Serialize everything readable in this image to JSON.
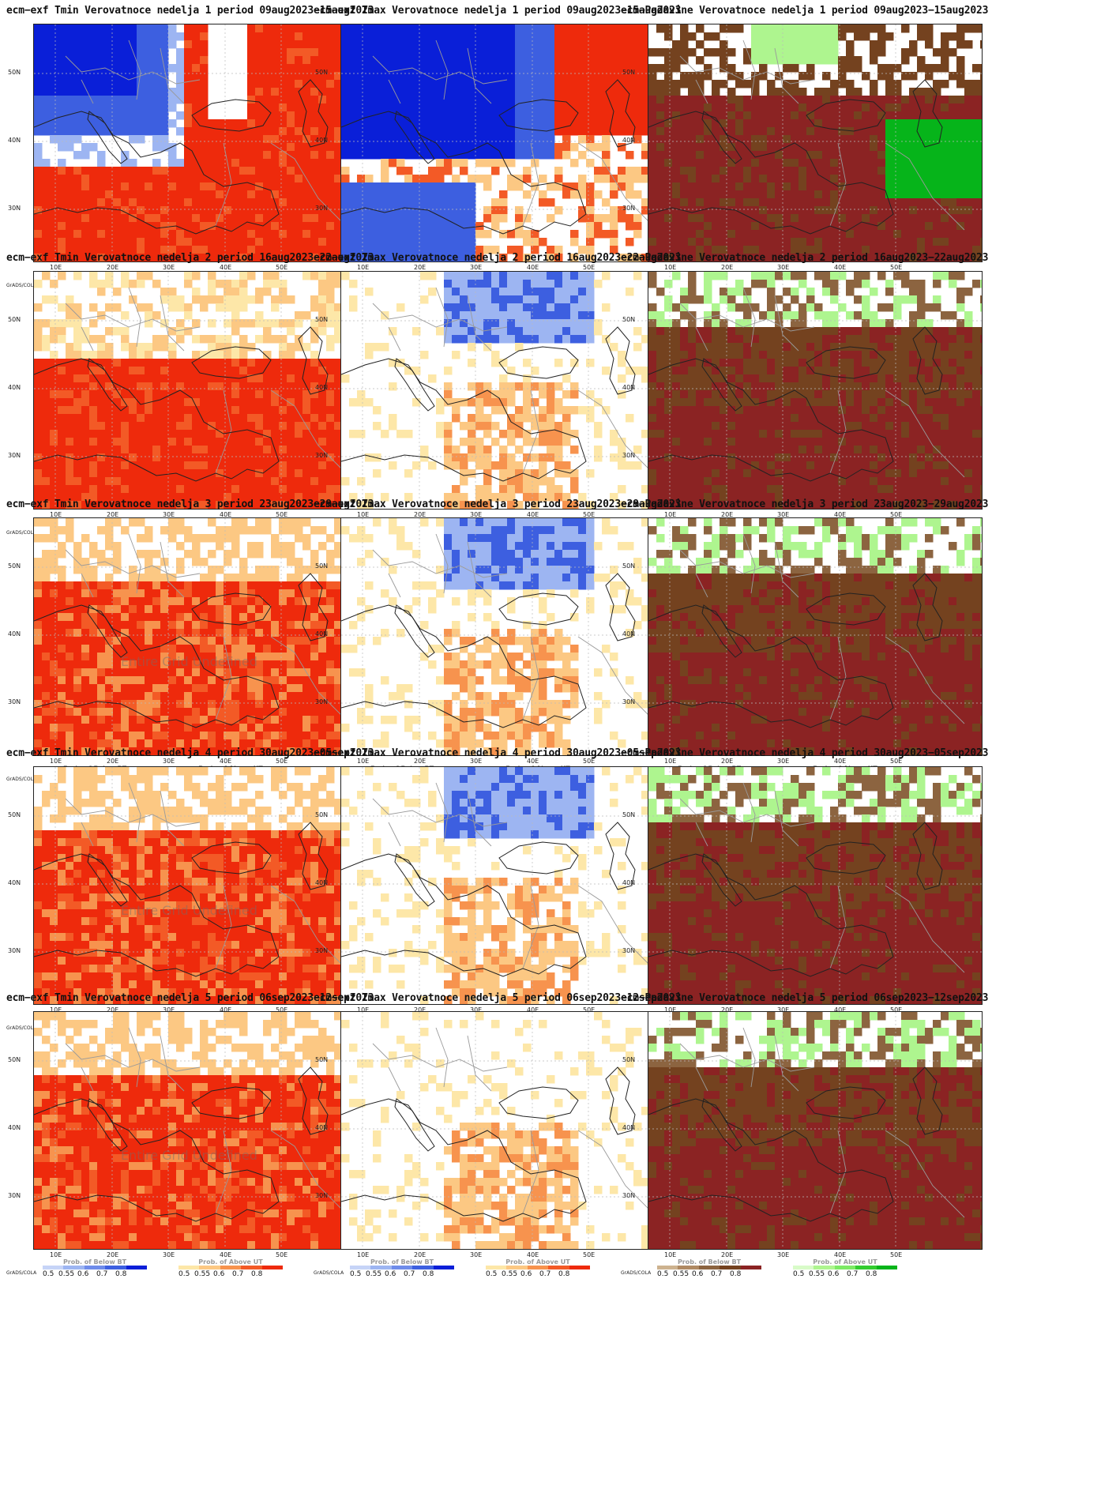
{
  "rows": 5,
  "columns": [
    "Tmin",
    "Tmax",
    "Padavine"
  ],
  "panels": [
    {
      "title": "ecm−exf Tmin Verovatnoce nedelja 1 period 09aug2023−15aug2023",
      "variable": "tmin",
      "week": 1,
      "watermark": ""
    },
    {
      "title": "ecm−exf Tmax Verovatnoce nedelja 1 period 09aug2023−15aug2023",
      "variable": "tmax",
      "week": 1,
      "watermark": ""
    },
    {
      "title": "ecm−Padavine Verovatnoce nedelja 1 period 09aug2023−15aug2023",
      "variable": "pad",
      "week": 1,
      "watermark": ""
    },
    {
      "title": "ecm−exf Tmin Verovatnoce nedelja 2 period 16aug2023−22aug2023",
      "variable": "tmin",
      "week": 2,
      "watermark": ""
    },
    {
      "title": "ecm−exf Tmax Verovatnoce nedelja 2 period 16aug2023−22aug2023",
      "variable": "tmax",
      "week": 2,
      "watermark": ""
    },
    {
      "title": "ecm−Padavine Verovatnoce nedelja 2 period 16aug2023−22aug2023",
      "variable": "pad",
      "week": 2,
      "watermark": ""
    },
    {
      "title": "ecm−exf Tmin Verovatnoce nedelja 3 period 23aug2023−29aug2023",
      "variable": "tmin",
      "week": 3,
      "watermark": "Entire Grid Undefined"
    },
    {
      "title": "ecm−exf Tmax Verovatnoce nedelja 3 period 23aug2023−29aug2023",
      "variable": "tmax",
      "week": 3,
      "watermark": ""
    },
    {
      "title": "ecm−Padavine Verovatnoce nedelja 3 period 23aug2023−29aug2023",
      "variable": "pad",
      "week": 3,
      "watermark": ""
    },
    {
      "title": "ecm−exf Tmin Verovatnoce nedelja 4 period 30aug2023−05sep2023",
      "variable": "tmin",
      "week": 4,
      "watermark": "Entire Grid Undefined"
    },
    {
      "title": "ecm−exf Tmax Verovatnoce nedelja 4 period 30aug2023−05sep2023",
      "variable": "tmax",
      "week": 4,
      "watermark": ""
    },
    {
      "title": "ecm−Padavine Verovatnoce nedelja 4 period 30aug2023−05sep2023",
      "variable": "pad",
      "week": 4,
      "watermark": ""
    },
    {
      "title": "ecm−exf Tmin Verovatnoce nedelja 5 period 06sep2023−12sep2023",
      "variable": "tmin",
      "week": 5,
      "watermark": "Entire Grid Undefined"
    },
    {
      "title": "ecm−exf Tmax Verovatnoce nedelja 5 period 06sep2023−12sep2023",
      "variable": "tmax",
      "week": 5,
      "watermark": ""
    },
    {
      "title": "ecm−Padavine Verovatnoce nedelja 5 period 06sep2023−12sep2023",
      "variable": "pad",
      "week": 5,
      "watermark": ""
    }
  ],
  "axes": {
    "lat_labels": [
      "50N",
      "40N",
      "30N"
    ],
    "lon_labels": [
      "10E",
      "20E",
      "30E",
      "40E",
      "50E"
    ],
    "credit": "GrADS/COLA"
  },
  "legends": {
    "below": {
      "title": "Prob. of Below BT",
      "ticks": [
        "0.5",
        "0.55",
        "0.6",
        "0.7",
        "0.8"
      ],
      "colors": [
        "#c6d4f7",
        "#9db5f2",
        "#6e8cea",
        "#3d5fe0",
        "#0a1fd8"
      ]
    },
    "above": {
      "title": "Prob. of Above UT",
      "ticks": [
        "0.5",
        "0.55",
        "0.6",
        "0.7",
        "0.8"
      ],
      "colors": [
        "#fde7a8",
        "#fcc883",
        "#f7934e",
        "#f35a26",
        "#ee2a0c"
      ]
    },
    "pbelow": {
      "title": "Prob. of Below BT",
      "ticks": [
        "0.5",
        "0.55",
        "0.6",
        "0.7",
        "0.8"
      ],
      "colors": [
        "#cdb28f",
        "#b08a63",
        "#8c6440",
        "#74421f",
        "#8b2323"
      ]
    },
    "pabove": {
      "title": "Prob. of Above UT",
      "ticks": [
        "0.5",
        "0.55",
        "0.6",
        "0.7",
        "0.8"
      ],
      "colors": [
        "#d8fbc8",
        "#aef58f",
        "#7de965",
        "#33cc2f",
        "#06b41a"
      ]
    }
  },
  "colors": {
    "tmin_warm": "#ee2a0c",
    "tmin_hot": "#f35a26",
    "tmin_mid": "#f7934e",
    "tmin_light": "#fcc883",
    "tmin_pale": "#fde7a8",
    "cold_strong": "#0a1fd8",
    "cold_mid": "#3d5fe0",
    "cold_light": "#9db5f2",
    "cold_pale": "#c6d4f7",
    "dry_strong": "#8b2323",
    "dry_mid": "#74421f",
    "dry_light": "#8c6440",
    "wet_light": "#aef58f",
    "wet_strong": "#06b41a",
    "border": "#9a9a9a",
    "coast": "#222222",
    "grid": "#bbbbbb"
  }
}
